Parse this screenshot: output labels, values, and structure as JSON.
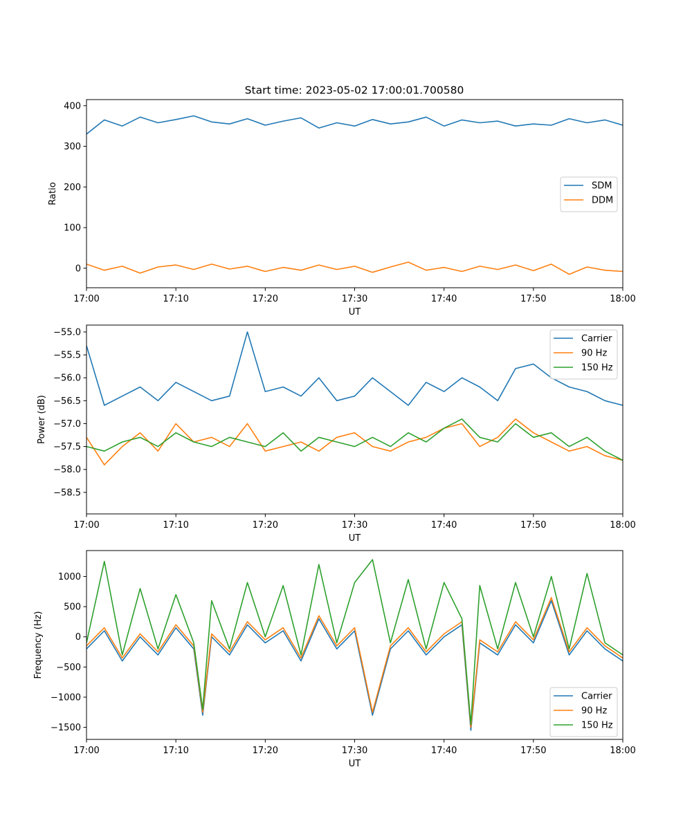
{
  "title": "Start time: 2023-05-02 17:00:01.700580",
  "colors": {
    "series1": "#1f77b4",
    "series2": "#ff7f0e",
    "series3": "#2ca02c"
  },
  "chart_data": [
    {
      "type": "line",
      "title": "Start time: 2023-05-02 17:00:01.700580",
      "xlabel": "UT",
      "ylabel": "Ratio",
      "xlim": [
        "17:00",
        "18:00"
      ],
      "x_ticks": [
        "17:00",
        "17:10",
        "17:20",
        "17:30",
        "17:40",
        "17:50",
        "18:00"
      ],
      "ylim": [
        -48,
        415
      ],
      "y_ticks": [
        0,
        100,
        200,
        300,
        400
      ],
      "y_tick_labels": [
        "0",
        "100",
        "200",
        "300",
        "400"
      ],
      "legend_position": "center-right",
      "x": [
        "17:00",
        "17:02",
        "17:04",
        "17:06",
        "17:08",
        "17:10",
        "17:12",
        "17:14",
        "17:16",
        "17:18",
        "17:20",
        "17:22",
        "17:24",
        "17:26",
        "17:28",
        "17:30",
        "17:32",
        "17:34",
        "17:36",
        "17:38",
        "17:40",
        "17:42",
        "17:44",
        "17:46",
        "17:48",
        "17:50",
        "17:52",
        "17:54",
        "17:56",
        "17:58",
        "18:00"
      ],
      "series": [
        {
          "name": "SDM",
          "color": "#1f77b4",
          "values": [
            330,
            365,
            350,
            372,
            358,
            366,
            375,
            360,
            355,
            368,
            352,
            362,
            370,
            345,
            358,
            350,
            366,
            355,
            360,
            372,
            350,
            365,
            358,
            362,
            350,
            355,
            352,
            368,
            358,
            365,
            352
          ]
        },
        {
          "name": "DDM",
          "color": "#ff7f0e",
          "values": [
            10,
            -5,
            5,
            -12,
            3,
            8,
            -3,
            10,
            -2,
            5,
            -8,
            2,
            -5,
            8,
            -3,
            5,
            -10,
            3,
            15,
            -5,
            2,
            -8,
            5,
            -3,
            8,
            -6,
            10,
            -15,
            3,
            -5,
            -8
          ]
        }
      ]
    },
    {
      "type": "line",
      "xlabel": "UT",
      "ylabel": "Power (dB)",
      "xlim": [
        "17:00",
        "18:00"
      ],
      "x_ticks": [
        "17:00",
        "17:10",
        "17:20",
        "17:30",
        "17:40",
        "17:50",
        "18:00"
      ],
      "ylim": [
        -58.97,
        -54.85
      ],
      "y_ticks": [
        -58.5,
        -58.0,
        -57.5,
        -57.0,
        -56.5,
        -56.0,
        -55.5,
        -55.0
      ],
      "y_tick_labels": [
        "−58.5",
        "−58.0",
        "−57.5",
        "−57.0",
        "−56.5",
        "−56.0",
        "−55.5",
        "−55.0"
      ],
      "legend_position": "top-right",
      "x": [
        "17:00",
        "17:02",
        "17:04",
        "17:06",
        "17:08",
        "17:10",
        "17:12",
        "17:14",
        "17:16",
        "17:18",
        "17:20",
        "17:22",
        "17:24",
        "17:26",
        "17:28",
        "17:30",
        "17:32",
        "17:34",
        "17:36",
        "17:38",
        "17:40",
        "17:42",
        "17:44",
        "17:46",
        "17:48",
        "17:50",
        "17:52",
        "17:54",
        "17:56",
        "17:58",
        "18:00"
      ],
      "series": [
        {
          "name": "Carrier",
          "color": "#1f77b4",
          "values": [
            -55.3,
            -56.6,
            -56.4,
            -56.2,
            -56.5,
            -56.1,
            -56.3,
            -56.5,
            -56.4,
            -55.0,
            -56.3,
            -56.2,
            -56.4,
            -56.0,
            -56.5,
            -56.4,
            -56.0,
            -56.3,
            -56.6,
            -56.1,
            -56.3,
            -56.0,
            -56.2,
            -56.5,
            -55.8,
            -55.7,
            -56.0,
            -56.2,
            -56.3,
            -56.5,
            -56.6
          ]
        },
        {
          "name": "90 Hz",
          "color": "#ff7f0e",
          "values": [
            -57.3,
            -57.9,
            -57.5,
            -57.2,
            -57.6,
            -57.0,
            -57.4,
            -57.3,
            -57.5,
            -57.0,
            -57.6,
            -57.5,
            -57.4,
            -57.6,
            -57.3,
            -57.2,
            -57.5,
            -57.6,
            -57.4,
            -57.3,
            -57.1,
            -57.0,
            -57.5,
            -57.3,
            -56.9,
            -57.2,
            -57.4,
            -57.6,
            -57.5,
            -57.7,
            -57.8
          ]
        },
        {
          "name": "150 Hz",
          "color": "#2ca02c",
          "values": [
            -57.5,
            -57.6,
            -57.4,
            -57.3,
            -57.5,
            -57.2,
            -57.4,
            -57.5,
            -57.3,
            -57.4,
            -57.5,
            -57.2,
            -57.6,
            -57.3,
            -57.4,
            -57.5,
            -57.3,
            -57.5,
            -57.2,
            -57.4,
            -57.1,
            -56.9,
            -57.3,
            -57.4,
            -57.0,
            -57.3,
            -57.2,
            -57.5,
            -57.3,
            -57.6,
            -57.8
          ]
        }
      ]
    },
    {
      "type": "line",
      "xlabel": "UT",
      "ylabel": "Frequency (Hz)",
      "xlim": [
        "17:00",
        "18:00"
      ],
      "x_ticks": [
        "17:00",
        "17:10",
        "17:20",
        "17:30",
        "17:40",
        "17:50",
        "18:00"
      ],
      "ylim": [
        -1700,
        1430
      ],
      "y_ticks": [
        -1500,
        -1000,
        -500,
        0,
        500,
        1000
      ],
      "y_tick_labels": [
        "−1500",
        "−1000",
        "−500",
        "0",
        "500",
        "1000"
      ],
      "legend_position": "bottom-right",
      "x": [
        "17:00",
        "17:02",
        "17:04",
        "17:06",
        "17:08",
        "17:10",
        "17:12",
        "17:13",
        "17:14",
        "17:16",
        "17:18",
        "17:20",
        "17:22",
        "17:24",
        "17:26",
        "17:28",
        "17:30",
        "17:32",
        "17:34",
        "17:36",
        "17:38",
        "17:40",
        "17:42",
        "17:43",
        "17:44",
        "17:46",
        "17:48",
        "17:50",
        "17:52",
        "17:54",
        "17:56",
        "17:58",
        "18:00"
      ],
      "series": [
        {
          "name": "Carrier",
          "color": "#1f77b4",
          "values": [
            -200,
            100,
            -400,
            0,
            -300,
            150,
            -200,
            -1300,
            0,
            -300,
            200,
            -100,
            100,
            -400,
            300,
            -200,
            100,
            -1300,
            -200,
            100,
            -300,
            0,
            200,
            -1550,
            -100,
            -300,
            200,
            -100,
            600,
            -300,
            100,
            -200,
            -400
          ]
        },
        {
          "name": "90 Hz",
          "color": "#ff7f0e",
          "values": [
            -150,
            150,
            -350,
            50,
            -250,
            200,
            -150,
            -1250,
            50,
            -250,
            250,
            -50,
            150,
            -350,
            350,
            -150,
            150,
            -1250,
            -150,
            150,
            -250,
            50,
            250,
            -1500,
            -50,
            -250,
            250,
            -50,
            650,
            -250,
            150,
            -150,
            -350
          ]
        },
        {
          "name": "150 Hz",
          "color": "#2ca02c",
          "values": [
            -100,
            1250,
            -300,
            800,
            -200,
            700,
            -100,
            -1200,
            600,
            -200,
            900,
            0,
            850,
            -300,
            1200,
            -100,
            900,
            1280,
            -100,
            950,
            -200,
            900,
            300,
            -1450,
            850,
            -200,
            900,
            0,
            1000,
            -200,
            1050,
            -100,
            -300
          ]
        }
      ]
    }
  ]
}
